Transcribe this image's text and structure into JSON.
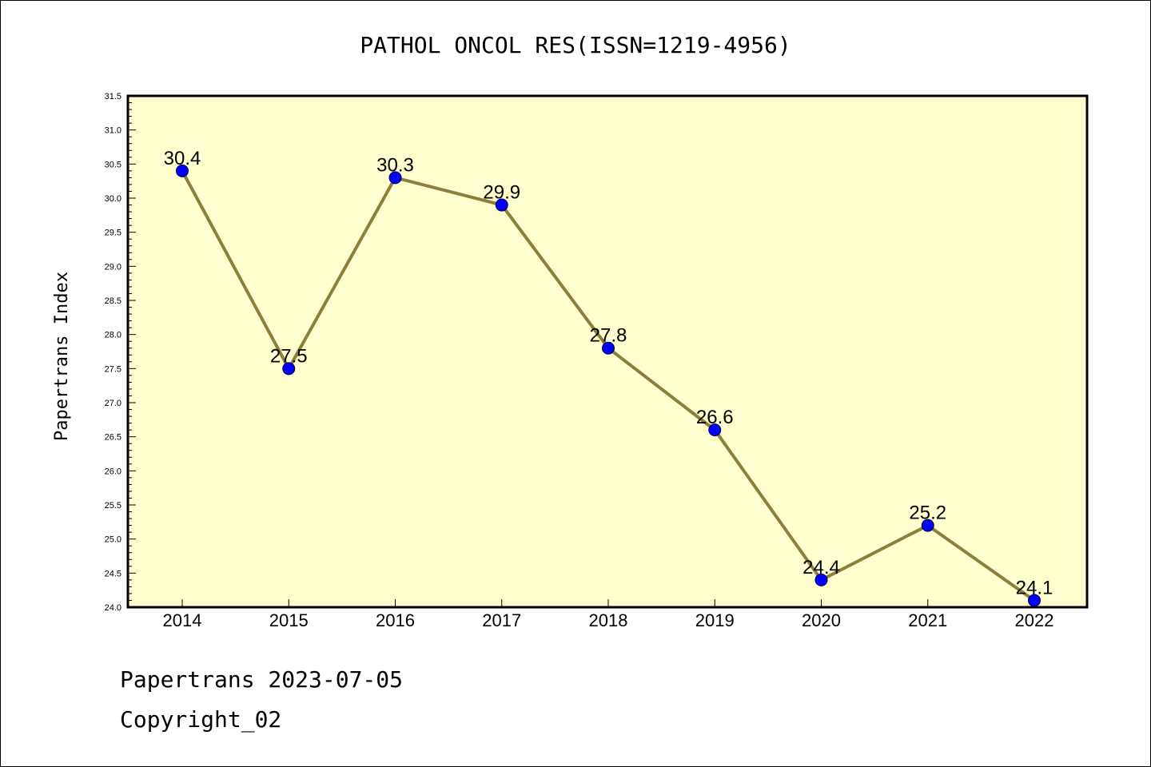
{
  "chart_data": {
    "type": "line",
    "title": "PATHOL ONCOL RES(ISSN=1219-4956)",
    "ylabel": "Papertrans Index",
    "xlabel": "",
    "categories": [
      "2014",
      "2015",
      "2016",
      "2017",
      "2018",
      "2019",
      "2020",
      "2021",
      "2022"
    ],
    "values": [
      30.4,
      27.5,
      30.3,
      29.9,
      27.8,
      26.6,
      24.4,
      25.2,
      24.1
    ],
    "data_labels": [
      "30.4",
      "27.5",
      "30.3",
      "29.9",
      "27.8",
      "26.6",
      "24.4",
      "25.2",
      "24.1"
    ],
    "ylim": [
      24.0,
      31.5
    ],
    "yticks": [
      "24.0",
      "24.5",
      "25.0",
      "25.5",
      "26.0",
      "26.5",
      "27.0",
      "27.5",
      "28.0",
      "28.5",
      "29.0",
      "29.5",
      "30.0",
      "30.5",
      "31.0",
      "31.5"
    ],
    "grid": false,
    "legend": "none",
    "colors": {
      "plot_background": "#ffffd0",
      "line": "#8b7f3a",
      "marker": "#0000ff"
    }
  },
  "footer": {
    "line1": "Papertrans 2023-07-05",
    "line2": "Copyright_02"
  }
}
